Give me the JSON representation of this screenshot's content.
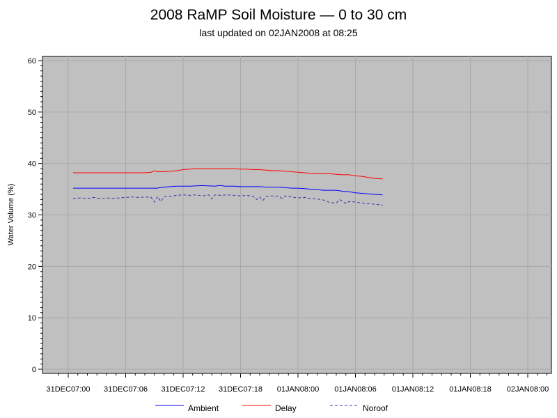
{
  "chart_data": {
    "type": "line",
    "title": "2008 RaMP Soil Moisture — 0 to 30 cm",
    "subtitle": "last updated on 02JAN2008 at 08:25",
    "xlabel": "",
    "ylabel": "Water Volume (%)",
    "ylim": [
      0,
      60
    ],
    "yticks": [
      "0",
      "10",
      "20",
      "30",
      "40",
      "50",
      "60"
    ],
    "xticks": [
      "31DEC07:00",
      "31DEC07:06",
      "31DEC07:12",
      "31DEC07:18",
      "01JAN08:00",
      "01JAN08:06",
      "01JAN08:12",
      "01JAN08:18",
      "02JAN08:00"
    ],
    "xrange_hours": [
      -2.7,
      51.0
    ],
    "grid": true,
    "legend_position": "bottom",
    "colors": {
      "plot_background": "#c0c0c0",
      "grid": "#a8a8a8"
    },
    "series": [
      {
        "name": "Ambient",
        "color": "#0000ff",
        "dash": false,
        "x": [
          1.5,
          6,
          12,
          13,
          14,
          16,
          18,
          20,
          24,
          26,
          28,
          28.5,
          29,
          30,
          32,
          34,
          36,
          38,
          42,
          46,
          47,
          48,
          49,
          50,
          52,
          54,
          56,
          58,
          60,
          62,
          64,
          66,
          68,
          70,
          72,
          74,
          76,
          78,
          80,
          82,
          84,
          86,
          88,
          90,
          92,
          94,
          96,
          98.5
        ],
        "y": [
          35.2,
          35.2,
          35.2,
          35.2,
          35.2,
          35.2,
          35.2,
          35.2,
          35.2,
          35.2,
          35.2,
          35.3,
          35.3,
          35.4,
          35.5,
          35.6,
          35.6,
          35.6,
          35.7,
          35.6,
          35.7,
          35.7,
          35.6,
          35.6,
          35.6,
          35.5,
          35.5,
          35.5,
          35.5,
          35.4,
          35.4,
          35.4,
          35.3,
          35.2,
          35.2,
          35.1,
          35.0,
          34.9,
          34.8,
          34.8,
          34.8,
          34.6,
          34.5,
          34.3,
          34.2,
          34.1,
          34.0,
          33.9
        ]
      },
      {
        "name": "Delay",
        "color": "#ff0000",
        "dash": false,
        "x": [
          1.5,
          6,
          12,
          18,
          24,
          26,
          27,
          28,
          30,
          32,
          34,
          36,
          38,
          40,
          42,
          44,
          46,
          48,
          50,
          52,
          54,
          56,
          58,
          60,
          62,
          64,
          66,
          68,
          70,
          72,
          74,
          76,
          78,
          80,
          82,
          84,
          86,
          88,
          90,
          92,
          94,
          96,
          98.5
        ],
        "y": [
          38.2,
          38.2,
          38.2,
          38.2,
          38.2,
          38.3,
          38.6,
          38.4,
          38.4,
          38.5,
          38.6,
          38.8,
          38.9,
          39.0,
          39.0,
          39.0,
          39.0,
          39.0,
          39.0,
          39.0,
          38.9,
          38.9,
          38.8,
          38.8,
          38.7,
          38.6,
          38.6,
          38.5,
          38.4,
          38.3,
          38.2,
          38.1,
          38.0,
          38.0,
          38.0,
          37.9,
          37.8,
          37.8,
          37.6,
          37.5,
          37.3,
          37.1,
          37.0
        ]
      },
      {
        "name": "Noroof",
        "color": "#3333aa",
        "dash": true,
        "x": [
          1.5,
          4,
          6,
          8,
          10,
          12,
          14,
          16,
          18,
          20,
          22,
          24,
          26,
          27,
          28,
          29,
          30,
          31,
          32,
          34,
          36,
          38,
          40,
          42,
          44,
          45,
          46,
          48,
          50,
          52,
          54,
          56,
          58,
          59,
          60,
          61,
          62,
          64,
          66,
          67,
          68,
          70,
          72,
          74,
          76,
          78,
          80,
          82,
          84,
          85,
          86,
          87,
          88,
          90,
          92,
          94,
          96,
          98.5
        ],
        "y": [
          33.2,
          33.3,
          33.2,
          33.4,
          33.2,
          33.3,
          33.2,
          33.3,
          33.4,
          33.5,
          33.4,
          33.5,
          33.4,
          32.5,
          33.6,
          32.6,
          33.5,
          33.6,
          33.6,
          33.8,
          33.9,
          33.8,
          33.9,
          33.7,
          33.9,
          33.1,
          33.9,
          33.8,
          33.9,
          33.8,
          33.7,
          33.8,
          33.6,
          33.0,
          33.5,
          32.8,
          33.6,
          33.7,
          33.6,
          33.2,
          33.7,
          33.5,
          33.3,
          33.4,
          33.2,
          33.1,
          32.9,
          32.4,
          32.3,
          33.0,
          32.7,
          32.2,
          32.6,
          32.5,
          32.3,
          32.2,
          32.1,
          31.9
        ]
      }
    ]
  }
}
